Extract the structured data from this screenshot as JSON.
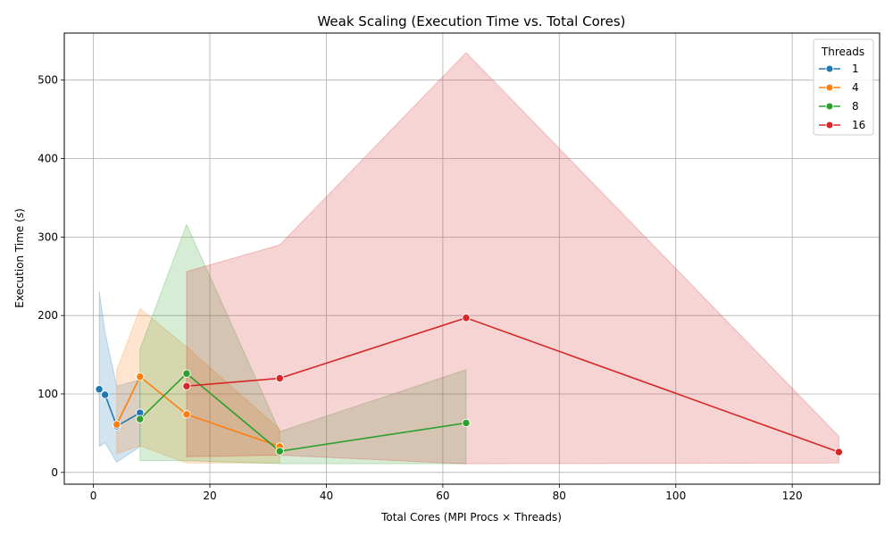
{
  "chart_data": {
    "type": "line",
    "title": "Weak Scaling (Execution Time vs. Total Cores)",
    "xlabel": "Total Cores (MPI Procs × Threads)",
    "ylabel": "Execution Time (s)",
    "xlim": [
      -5,
      135
    ],
    "ylim": [
      -15,
      560
    ],
    "x_ticks": [
      0,
      20,
      40,
      60,
      80,
      100,
      120
    ],
    "y_ticks": [
      0,
      100,
      200,
      300,
      400,
      500
    ],
    "grid": true,
    "legend": {
      "title": "Threads",
      "position": "top-right"
    },
    "series": [
      {
        "name": "1",
        "color": "#1f77b4",
        "x": [
          1,
          2,
          4,
          8
        ],
        "y": [
          106,
          99,
          59,
          76
        ],
        "ci_low": [
          33,
          38,
          13,
          33
        ],
        "ci_high": [
          231,
          178,
          110,
          118
        ]
      },
      {
        "name": "4",
        "color": "#ff7f0e",
        "x": [
          4,
          8,
          16,
          32
        ],
        "y": [
          61,
          122,
          74,
          33
        ],
        "ci_low": [
          24,
          34,
          12,
          12
        ],
        "ci_high": [
          130,
          209,
          160,
          55
        ]
      },
      {
        "name": "8",
        "color": "#2ca02c",
        "x": [
          8,
          16,
          32,
          64
        ],
        "y": [
          68,
          126,
          27,
          63
        ],
        "ci_low": [
          15,
          15,
          11,
          11
        ],
        "ci_high": [
          157,
          316,
          52,
          131
        ]
      },
      {
        "name": "16",
        "color": "#d62728",
        "x": [
          16,
          32,
          64,
          128
        ],
        "y": [
          110,
          120,
          197,
          26
        ],
        "ci_low": [
          20,
          22,
          11,
          12
        ],
        "ci_high": [
          256,
          290,
          535,
          46
        ]
      }
    ]
  }
}
